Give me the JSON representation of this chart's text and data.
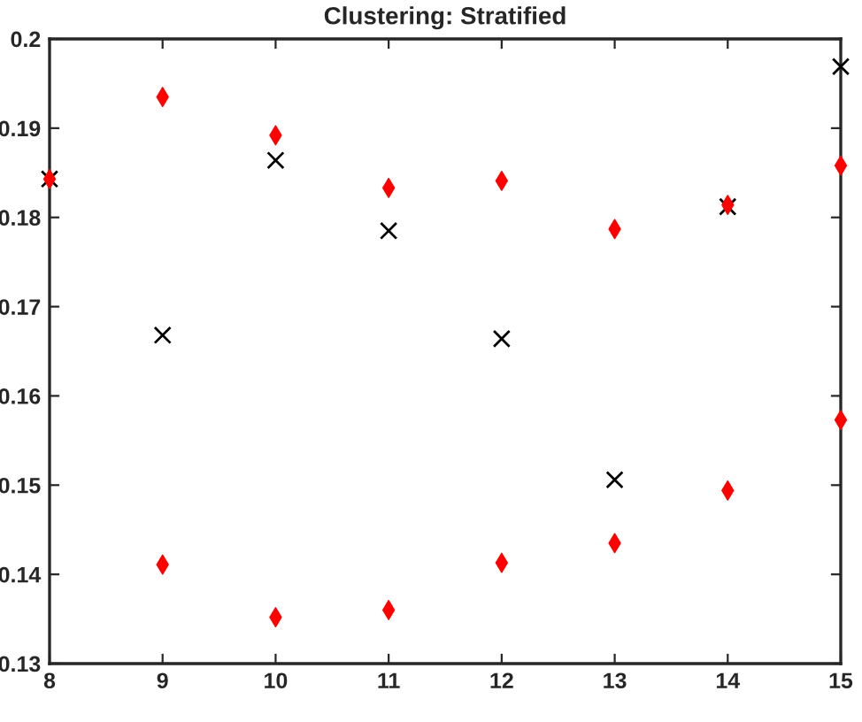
{
  "chart_data": {
    "type": "scatter",
    "title": "Clustering: Stratified",
    "x": [
      8,
      9,
      10,
      11,
      12,
      13,
      14,
      15
    ],
    "series": [
      {
        "color": "#000000",
        "marker": "cross",
        "values": [
          0.1843,
          0.1668,
          0.1864,
          0.1785,
          0.1664,
          0.1506,
          0.1812,
          0.1969
        ]
      },
      {
        "color": "#ff0000",
        "marker": "diamond",
        "values": [
          0.1843,
          0.1935,
          0.1892,
          0.1833,
          0.1841,
          0.1787,
          0.1814,
          0.1858
        ]
      },
      {
        "color": "#ff0000",
        "marker": "diamond",
        "values": [
          null,
          0.1411,
          0.1352,
          0.136,
          0.1413,
          0.1435,
          0.1494,
          0.1573
        ]
      }
    ],
    "xlim": [
      8,
      15
    ],
    "xticks": [
      8,
      9,
      10,
      11,
      12,
      13,
      14,
      15
    ],
    "ylim": [
      0.13,
      0.2
    ],
    "yticks": [
      0.13,
      0.14,
      0.15,
      0.16,
      0.17,
      0.18,
      0.19,
      0.2
    ],
    "grid": false,
    "legend": false
  }
}
